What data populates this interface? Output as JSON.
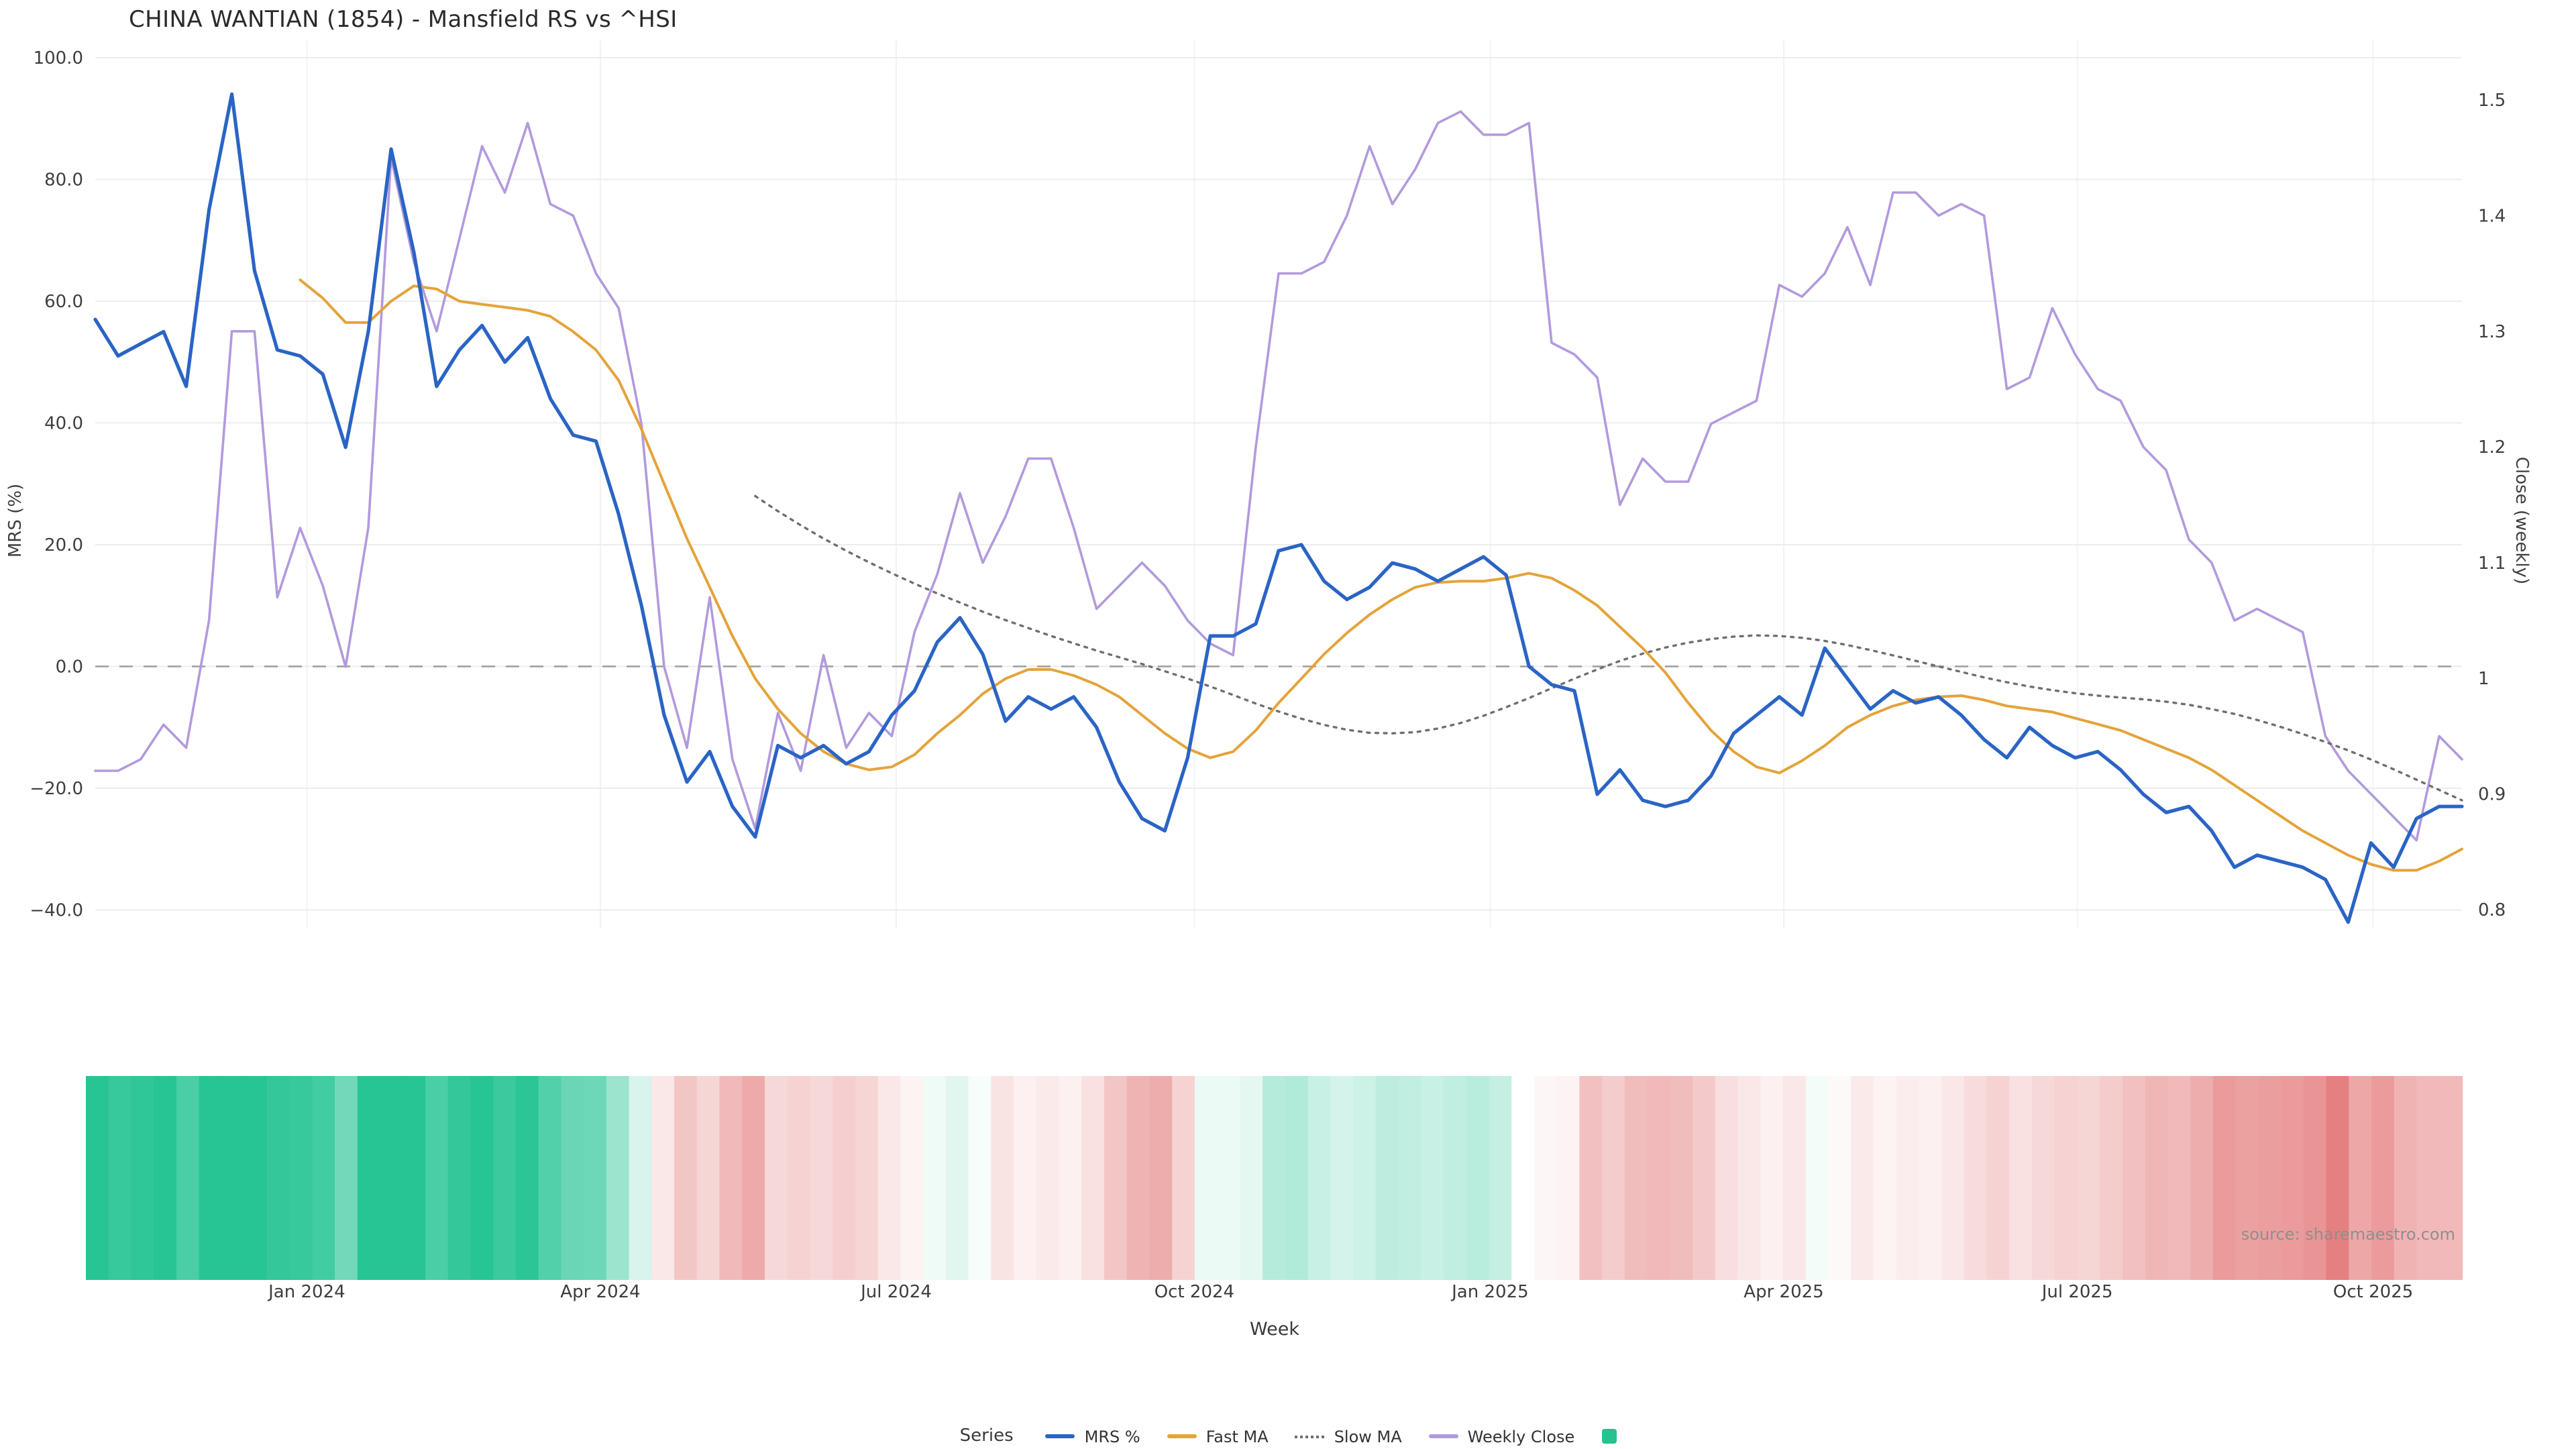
{
  "title": "CHINA WANTIAN (1854) - Mansfield RS vs ^HSI",
  "source": "source: sharemaestro.com",
  "legend": {
    "title": "Series",
    "items": [
      {
        "label": "MRS %",
        "swatch": "line",
        "thick": true,
        "color": "#2a64c5"
      },
      {
        "label": "Fast MA",
        "swatch": "line",
        "thick": false,
        "color": "#e4a33a"
      },
      {
        "label": "Slow MA",
        "swatch": "dotted-line",
        "thick": false,
        "color": "#6f6f6f"
      },
      {
        "label": "Weekly Close",
        "swatch": "line",
        "thick": false,
        "color": "#b29add"
      },
      {
        "label": "",
        "swatch": "square",
        "thick": false,
        "color": "#25c28f"
      }
    ]
  },
  "chart_data": {
    "type": "line",
    "title": "CHINA WANTIAN (1854) - Mansfield RS vs ^HSI",
    "xlabel": "Week",
    "ylabel_left": "MRS (%)",
    "ylabel_right": "Close (weekly)",
    "grid": true,
    "legend_position": "bottom",
    "weeks": 105,
    "x_ticks": [
      [
        9.3,
        "Jan 2024"
      ],
      [
        22.2,
        "Apr 2024"
      ],
      [
        35.2,
        "Jul 2024"
      ],
      [
        48.3,
        "Oct 2024"
      ],
      [
        61.3,
        "Jan 2025"
      ],
      [
        74.2,
        "Apr 2025"
      ],
      [
        87.1,
        "Jul 2025"
      ],
      [
        100.1,
        "Oct 2025"
      ]
    ],
    "y_left_ticks": [
      [
        100,
        "100.0"
      ],
      [
        80,
        "80.0"
      ],
      [
        60,
        "60.0"
      ],
      [
        40,
        "40.0"
      ],
      [
        20,
        "20.0"
      ],
      [
        0,
        "0.0"
      ],
      [
        -20,
        "−20.0"
      ],
      [
        -40,
        "−40.0"
      ]
    ],
    "y_right_ticks": [
      [
        1.5,
        "1.5"
      ],
      [
        1.4,
        "1.4"
      ],
      [
        1.3,
        "1.3"
      ],
      [
        1.2,
        "1.2"
      ],
      [
        1.1,
        "1.1"
      ],
      [
        1.0,
        "1"
      ],
      [
        0.9,
        "0.9"
      ],
      [
        0.8,
        "0.8"
      ]
    ],
    "zero_line": {
      "value": 0,
      "style": "dashed",
      "color": "#a0a0a0"
    },
    "series": [
      {
        "name": "MRS %",
        "axis": "left",
        "style": "solid",
        "width": 2.6,
        "color": "#2a64c5",
        "values": [
          57,
          51,
          53,
          55,
          46,
          75,
          94,
          65,
          52,
          51,
          48,
          36,
          55,
          85,
          68,
          46,
          52,
          56,
          50,
          54,
          44,
          38,
          37,
          25,
          10,
          -8,
          -19,
          -14,
          -23,
          -28,
          -13,
          -15,
          -13,
          -16,
          -14,
          -8,
          -4,
          4,
          8,
          2,
          -9,
          -5,
          -7,
          -5,
          -10,
          -19,
          -25,
          -27,
          -15,
          5,
          5,
          7,
          19,
          20,
          14,
          11,
          13,
          17,
          16,
          14,
          16,
          18,
          15,
          0,
          -3,
          -4,
          -21,
          -17,
          -22,
          -23,
          -22,
          -18,
          -11,
          -8,
          -5,
          -8,
          3,
          -2,
          -7,
          -4,
          -6,
          -5,
          -8,
          -12,
          -15,
          -10,
          -13,
          -15,
          -14,
          -17,
          -21,
          -24,
          -23,
          -27,
          -33,
          -31,
          -32,
          -33,
          -35,
          -42,
          -29,
          -33,
          -25,
          -23,
          -23
        ]
      },
      {
        "name": "Fast MA",
        "axis": "left",
        "style": "solid",
        "width": 2.0,
        "color": "#e4a33a",
        "values": [
          null,
          null,
          null,
          null,
          null,
          null,
          null,
          null,
          null,
          63.5,
          60.5,
          56.5,
          56.5,
          60,
          62.5,
          62,
          60,
          59.5,
          59,
          58.5,
          57.5,
          55,
          52,
          47,
          39,
          30,
          21,
          13,
          5,
          -2,
          -7,
          -11,
          -14,
          -16,
          -17,
          -16.5,
          -14.5,
          -11,
          -8,
          -4.5,
          -2,
          -0.5,
          -0.5,
          -1.5,
          -3,
          -5,
          -8,
          -11,
          -13.5,
          -15,
          -14,
          -10.5,
          -6,
          -2,
          2,
          5.5,
          8.5,
          11,
          13,
          13.8,
          14,
          14,
          14.5,
          15.3,
          14.5,
          12.5,
          10,
          6.5,
          3,
          -1,
          -6,
          -10.5,
          -14,
          -16.5,
          -17.5,
          -15.5,
          -13,
          -10,
          -8,
          -6.5,
          -5.5,
          -5,
          -4.8,
          -5.5,
          -6.5,
          -7,
          -7.5,
          -8.5,
          -9.5,
          -10.5,
          -12,
          -13.5,
          -15,
          -17,
          -19.5,
          -22,
          -24.5,
          -27,
          -29,
          -31,
          -32.5,
          -33.5,
          -33.5,
          -32,
          -30
        ]
      },
      {
        "name": "Slow MA",
        "axis": "left",
        "style": "dotted",
        "width": 1.7,
        "color": "#6f6f6f",
        "values": [
          null,
          null,
          null,
          null,
          null,
          null,
          null,
          null,
          null,
          null,
          null,
          null,
          null,
          null,
          null,
          null,
          null,
          null,
          null,
          null,
          null,
          null,
          null,
          null,
          null,
          null,
          null,
          null,
          null,
          28,
          25.5,
          23.2,
          21,
          19,
          17.1,
          15.3,
          13.6,
          12,
          10.5,
          9,
          7.6,
          6.3,
          5,
          3.8,
          2.6,
          1.5,
          0.4,
          -0.8,
          -2,
          -3.3,
          -4.7,
          -6.1,
          -7.4,
          -8.6,
          -9.6,
          -10.4,
          -10.9,
          -11,
          -10.8,
          -10.2,
          -9.3,
          -8.1,
          -6.7,
          -5.2,
          -3.6,
          -2,
          -0.5,
          0.9,
          2.1,
          3.1,
          3.9,
          4.5,
          4.9,
          5.1,
          5,
          4.7,
          4.2,
          3.5,
          2.7,
          1.8,
          0.9,
          0,
          -0.9,
          -1.8,
          -2.6,
          -3.3,
          -3.9,
          -4.4,
          -4.8,
          -5.1,
          -5.4,
          -5.8,
          -6.3,
          -7,
          -7.8,
          -8.8,
          -9.9,
          -11.1,
          -12.4,
          -13.8,
          -15.3,
          -16.9,
          -18.6,
          -20.3,
          -22
        ]
      },
      {
        "name": "Weekly Close",
        "axis": "right",
        "style": "solid",
        "width": 1.8,
        "color": "#b29add",
        "values": [
          0.92,
          0.92,
          0.93,
          0.96,
          0.94,
          1.05,
          1.3,
          1.3,
          1.07,
          1.13,
          1.08,
          1.01,
          1.13,
          1.45,
          1.36,
          1.3,
          1.38,
          1.46,
          1.42,
          1.48,
          1.41,
          1.4,
          1.35,
          1.32,
          1.22,
          1.01,
          0.94,
          1.07,
          0.93,
          0.87,
          0.97,
          0.92,
          1.02,
          0.94,
          0.97,
          0.95,
          1.04,
          1.09,
          1.16,
          1.1,
          1.14,
          1.19,
          1.19,
          1.13,
          1.06,
          1.08,
          1.1,
          1.08,
          1.05,
          1.03,
          1.02,
          1.2,
          1.35,
          1.35,
          1.36,
          1.4,
          1.46,
          1.41,
          1.44,
          1.48,
          1.49,
          1.47,
          1.47,
          1.48,
          1.29,
          1.28,
          1.26,
          1.15,
          1.19,
          1.17,
          1.17,
          1.22,
          1.23,
          1.24,
          1.34,
          1.33,
          1.35,
          1.39,
          1.34,
          1.42,
          1.42,
          1.4,
          1.41,
          1.4,
          1.25,
          1.26,
          1.32,
          1.28,
          1.25,
          1.24,
          1.2,
          1.18,
          1.12,
          1.1,
          1.05,
          1.06,
          1.05,
          1.04,
          0.95,
          0.92,
          0.9,
          0.88,
          0.86,
          0.95,
          0.93
        ]
      }
    ],
    "heatmap": {
      "derived_from": "MRS %",
      "positive_color": "#27c494",
      "negative_color": "#e58080",
      "positive_full_scale": 55,
      "negative_full_scale": 42,
      "note": "weekly band strip: green = positive MRS, red = negative MRS, intensity proportional to |MRS|"
    }
  }
}
